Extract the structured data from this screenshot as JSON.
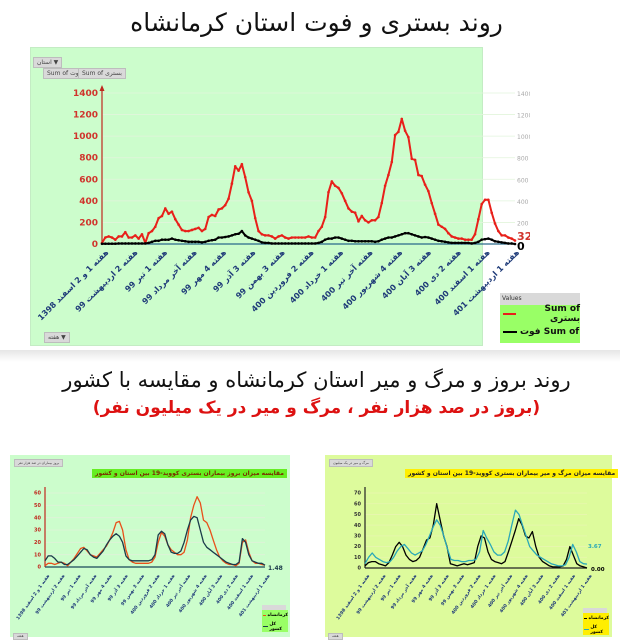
{
  "page": {
    "title_top": "روند بستری و فوت استان کرمانشاه",
    "title_mid": "روند بروز و مرگ و میر استان کرمانشاه و مقایسه با کشور",
    "subtitle_mid": "(بروز در صد هزار نفر ، مرگ و میر در یک میلیون نفر)"
  },
  "top_chart": {
    "filter_pill": "استان ▼",
    "series_pill_1": "Sum of فوت",
    "series_pill_2": "Sum of بستری",
    "axis_pill": "هفته ▼",
    "legend_header": "Values",
    "legend_items": [
      {
        "label": "Sum of بستری",
        "color": "#e8201a"
      },
      {
        "label": "Sum of فوت",
        "color": "#000000"
      }
    ],
    "end_label_red": "32",
    "end_label_black": "0"
  },
  "bottom_left_chart": {
    "filter_pill": "بروز بیماران در صد هزار نفر",
    "title": "مقایسه میزان بروز بیماران بستری کووید-19 بین استان و کشور",
    "title_bg": "#66ee22",
    "end_label": "1.48",
    "legend_items": [
      {
        "label": "کرمانشاه",
        "color": "#e8501a"
      },
      {
        "label": "کل کشور",
        "color": "#1a3a4a"
      }
    ],
    "axis_pill": "هفته"
  },
  "bottom_right_chart": {
    "filter_pill": "مرگ و میر در یک میلیون",
    "title": "مقایسه میزان مرگ و میر بیماران بستری کووید-19 بین استان و کشور",
    "title_bg": "#ffee00",
    "end_label_1": "3.67",
    "end_label_2": "0.00",
    "legend_items": [
      {
        "label": "کرمانشاه",
        "color": "#000000"
      },
      {
        "label": "کل کشور",
        "color": "#2aa8b8"
      }
    ],
    "axis_pill": "هفته"
  },
  "chart_data": [
    {
      "type": "line",
      "title": "روند بستری و فوت استان کرمانشاه",
      "xlabel": "هفته",
      "ylabel": "",
      "ylim": [
        0,
        1400
      ],
      "yticks": [
        0,
        200,
        400,
        600,
        800,
        1000,
        1200,
        1400
      ],
      "secondary_yticks": [
        200,
        400,
        600,
        800,
        1000,
        1200,
        1400
      ],
      "grid": true,
      "legend_position": "bottom-right",
      "categories": [
        "هفته 1 و 2 اسفند 1398",
        "هفته 2 اردیبهشت 99",
        "هفته 1 تیر 99",
        "هفته آخر مرداد 99",
        "هفته 4 مهر 99",
        "هفته 3 آذر 99",
        "هفته 3 بهمن 99",
        "هفته 2 فروردین 400",
        "هفته 1 خرداد 400",
        "هفته آخر تیر 400",
        "هفته 4 شهریور 400",
        "هفته 3 آبان 400",
        "هفته 2 دی 400",
        "هفته 1 اسفند 400",
        "هفته 1 اردیبهشت 401"
      ],
      "series": [
        {
          "name": "Sum of بستری",
          "color": "#e8201a",
          "values": [
            10,
            60,
            70,
            60,
            40,
            70,
            70,
            110,
            60,
            60,
            80,
            50,
            90,
            10,
            100,
            120,
            160,
            240,
            260,
            330,
            280,
            300,
            230,
            180,
            130,
            120,
            120,
            130,
            140,
            150,
            120,
            140,
            250,
            270,
            260,
            320,
            330,
            360,
            420,
            560,
            720,
            680,
            740,
            620,
            480,
            400,
            240,
            120,
            90,
            80,
            80,
            70,
            50,
            70,
            80,
            60,
            50,
            60,
            60,
            60,
            60,
            60,
            70,
            60,
            60,
            120,
            160,
            250,
            480,
            580,
            540,
            520,
            470,
            400,
            330,
            300,
            290,
            210,
            260,
            220,
            200,
            220,
            220,
            250,
            380,
            540,
            640,
            760,
            1010,
            1040,
            1160,
            1050,
            990,
            790,
            780,
            640,
            630,
            550,
            490,
            380,
            280,
            180,
            160,
            140,
            100,
            70,
            60,
            50,
            50,
            40,
            40,
            40,
            90,
            230,
            370,
            410,
            410,
            290,
            190,
            120,
            80,
            80,
            60,
            50,
            32
          ]
        },
        {
          "name": "Sum of فوت",
          "color": "#000000",
          "values": [
            2,
            3,
            3,
            3,
            3,
            5,
            5,
            5,
            5,
            5,
            5,
            5,
            5,
            5,
            10,
            20,
            30,
            30,
            40,
            40,
            40,
            50,
            40,
            35,
            30,
            25,
            20,
            20,
            20,
            20,
            15,
            20,
            30,
            35,
            40,
            60,
            60,
            65,
            70,
            80,
            90,
            95,
            120,
            80,
            60,
            50,
            40,
            30,
            15,
            10,
            10,
            5,
            5,
            5,
            5,
            5,
            5,
            5,
            5,
            5,
            5,
            5,
            5,
            5,
            5,
            10,
            20,
            40,
            50,
            50,
            60,
            60,
            50,
            40,
            30,
            30,
            25,
            25,
            25,
            25,
            25,
            25,
            20,
            25,
            40,
            50,
            60,
            60,
            70,
            80,
            90,
            100,
            100,
            90,
            80,
            70,
            60,
            65,
            60,
            50,
            40,
            30,
            25,
            20,
            15,
            10,
            10,
            10,
            10,
            10,
            10,
            5,
            10,
            20,
            40,
            45,
            50,
            40,
            25,
            20,
            15,
            10,
            5,
            5,
            0
          ]
        }
      ]
    },
    {
      "type": "line",
      "title": "مقایسه میزان بروز بیماران بستری کووید-19 بین استان و کشور",
      "ylim": [
        0,
        60
      ],
      "yticks": [
        0,
        10,
        20,
        30,
        40,
        50,
        60
      ],
      "grid": true,
      "legend_position": "bottom-right",
      "categories": [
        "هفته 1 و 2 اسفند 1398",
        "هفته 2 اردیبهشت 99",
        "هفته 1 تیر 99",
        "هفته آخر مرداد 99",
        "هفته 4 مهر 99",
        "هفته 3 آذر 99",
        "هفته 3 بهمن 99",
        "هفته 2 فروردین 400",
        "هفته 1 خرداد 400",
        "هفته آخر تیر 400",
        "هفته 4 شهریور 400",
        "هفته 3 آبان 400",
        "هفته 2 دی 400",
        "هفته 1 اسفند 400",
        "هفته 1 اردیبهشت 401"
      ],
      "series": [
        {
          "name": "کرمانشاه",
          "color": "#e8501a",
          "values": [
            1,
            3,
            3,
            2,
            3,
            4,
            3,
            1,
            4,
            7,
            11,
            15,
            16,
            13,
            10,
            9,
            8,
            11,
            14,
            17,
            22,
            28,
            36,
            37,
            30,
            14,
            6,
            4,
            3,
            3,
            3,
            3,
            3,
            4,
            8,
            20,
            28,
            25,
            18,
            14,
            12,
            10,
            10,
            12,
            22,
            40,
            50,
            57,
            52,
            38,
            36,
            30,
            22,
            14,
            8,
            5,
            3,
            2,
            2,
            1,
            3,
            20,
            22,
            12,
            5,
            3,
            3,
            2,
            1.48
          ]
        },
        {
          "name": "کل کشور",
          "color": "#1a3a4a",
          "values": [
            5,
            9,
            9,
            7,
            4,
            4,
            2,
            2,
            4,
            6,
            9,
            12,
            15,
            14,
            10,
            8,
            7,
            10,
            13,
            18,
            22,
            25,
            27,
            25,
            20,
            9,
            6,
            5,
            5,
            5,
            5,
            5,
            5,
            6,
            10,
            26,
            29,
            27,
            18,
            12,
            11,
            11,
            13,
            20,
            30,
            38,
            41,
            40,
            30,
            20,
            16,
            14,
            12,
            10,
            8,
            6,
            4,
            3,
            2,
            2,
            4,
            23,
            20,
            10,
            5,
            4,
            3,
            3,
            1.48
          ]
        }
      ]
    },
    {
      "type": "line",
      "title": "مقایسه میزان مرگ و میر بیماران بستری کووید-19 بین استان و کشور",
      "ylim": [
        0,
        70
      ],
      "yticks": [
        0,
        10,
        20,
        30,
        40,
        50,
        60,
        70
      ],
      "grid": true,
      "legend_position": "bottom-right",
      "categories": [
        "هفته 1 و 2 اسفند 1398",
        "هفته 2 اردیبهشت 99",
        "هفته 1 تیر 99",
        "هفته آخر مرداد 99",
        "هفته 4 مهر 99",
        "هفته 3 آذر 99",
        "هفته 3 بهمن 99",
        "هفته 2 فروردین 400",
        "هفته 1 خرداد 400",
        "هفته آخر تیر 400",
        "هفته 4 شهریور 400",
        "هفته 3 آبان 400",
        "هفته 2 دی 400",
        "هفته 1 اسفند 400",
        "هفته 1 اردیبهشت 401"
      ],
      "series": [
        {
          "name": "کرمانشاه",
          "color": "#000000",
          "values": [
            2,
            5,
            6,
            6,
            4,
            3,
            2,
            5,
            12,
            20,
            24,
            20,
            12,
            8,
            6,
            7,
            10,
            18,
            26,
            28,
            40,
            60,
            45,
            30,
            20,
            4,
            3,
            2,
            3,
            4,
            3,
            4,
            5,
            20,
            30,
            28,
            15,
            8,
            6,
            5,
            4,
            6,
            15,
            25,
            35,
            46,
            40,
            30,
            28,
            34,
            20,
            10,
            6,
            4,
            2,
            1,
            1,
            1,
            2,
            8,
            20,
            12,
            4,
            2,
            1,
            0
          ]
        },
        {
          "name": "کل کشور",
          "color": "#2aa8b8",
          "values": [
            4,
            10,
            14,
            10,
            8,
            6,
            5,
            6,
            10,
            16,
            20,
            22,
            18,
            14,
            12,
            14,
            16,
            22,
            30,
            38,
            45,
            40,
            30,
            18,
            8,
            7,
            7,
            6,
            6,
            7,
            7,
            8,
            15,
            35,
            28,
            22,
            15,
            12,
            12,
            15,
            25,
            40,
            54,
            50,
            40,
            30,
            20,
            16,
            12,
            10,
            8,
            6,
            4,
            3,
            2,
            2,
            3,
            10,
            22,
            15,
            6,
            4,
            3.67
          ]
        }
      ]
    }
  ]
}
